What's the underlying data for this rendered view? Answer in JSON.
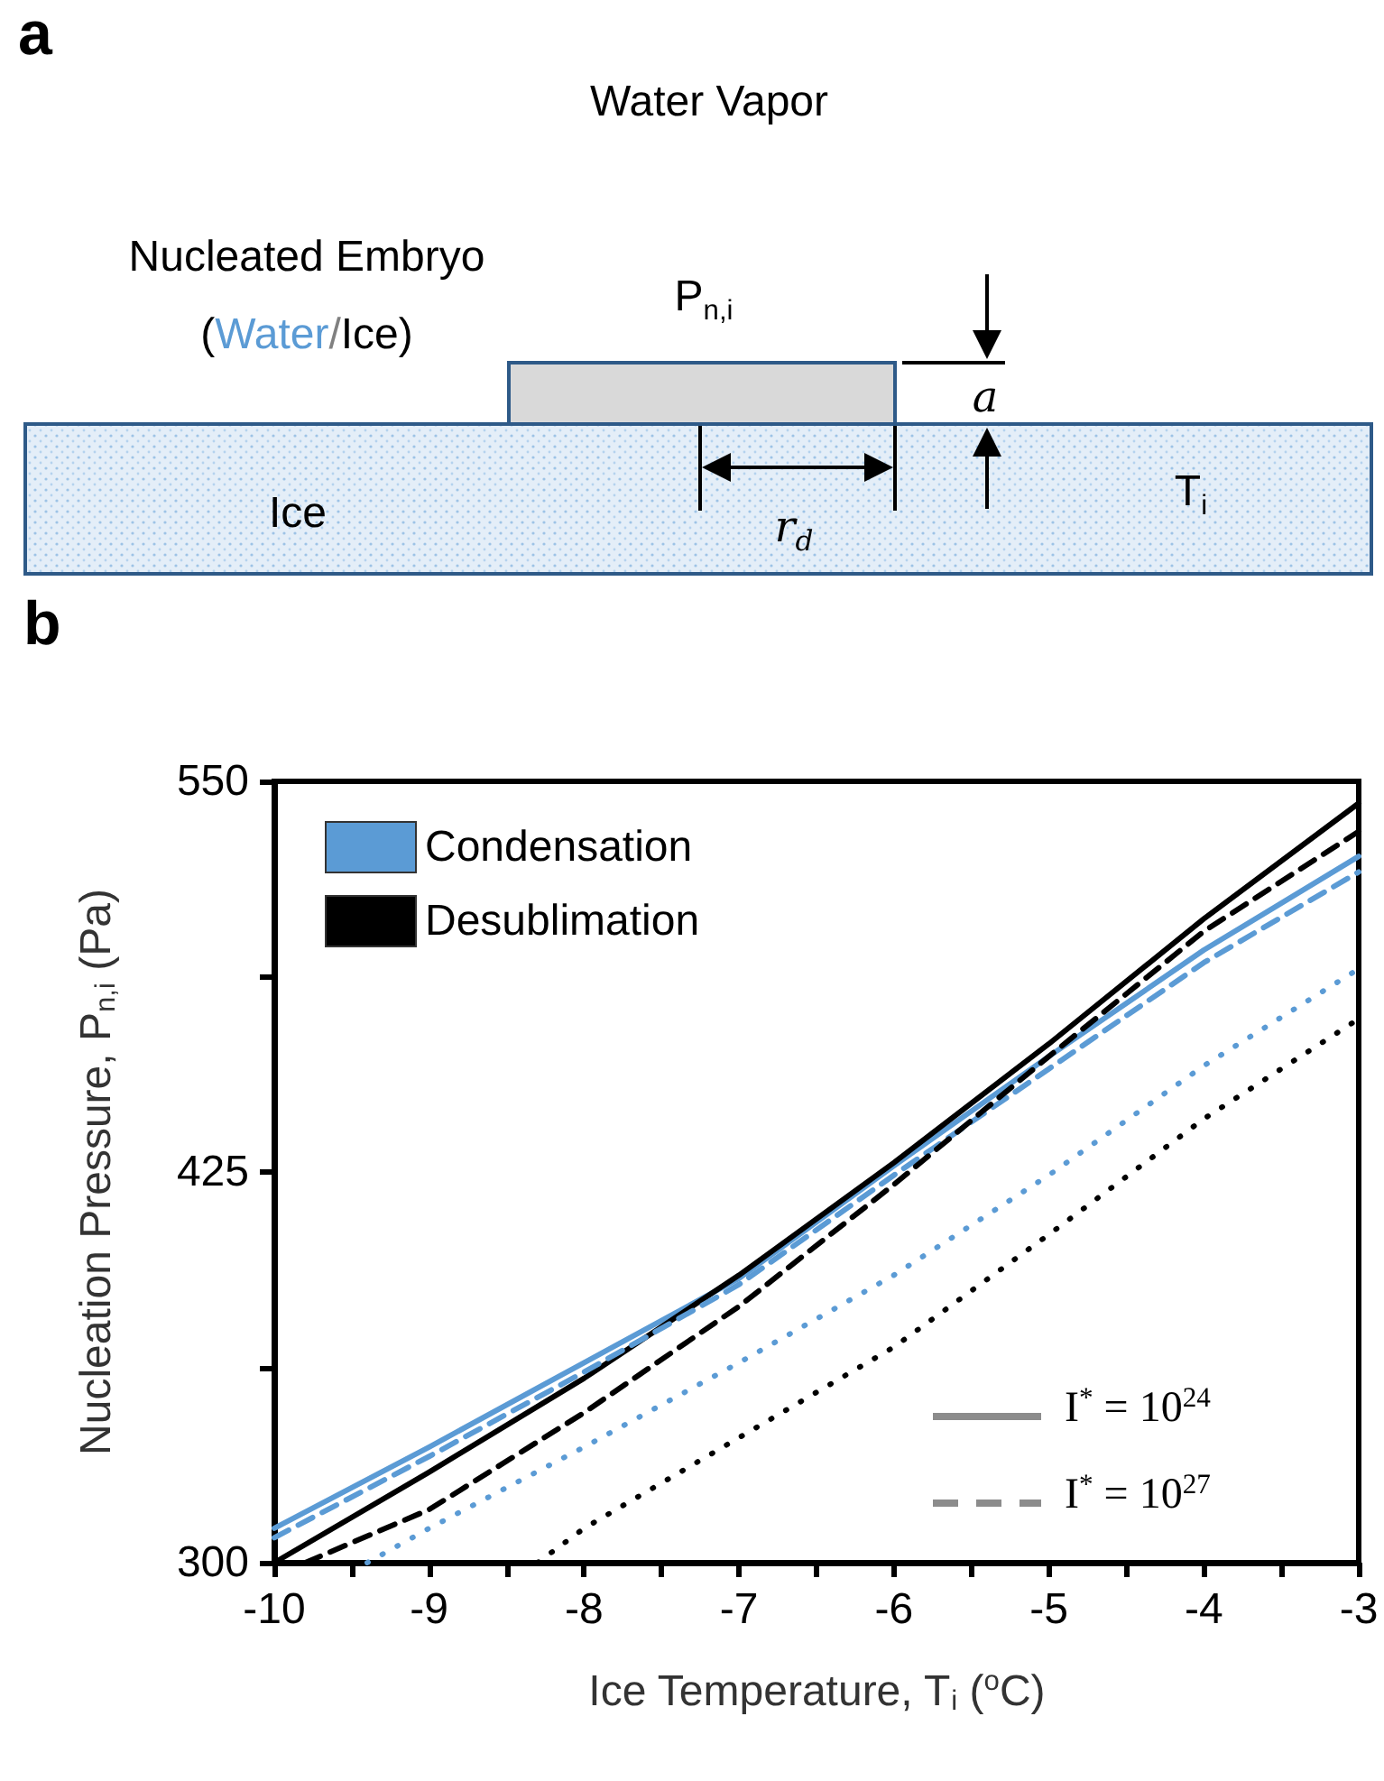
{
  "chart_data": [
    {
      "type": "other",
      "title": "a",
      "annotations": [
        "Water Vapor",
        "Nucleated Embryo",
        "(Water/Ice)",
        "P$_{n,i}$",
        "Ice",
        "r$_{d}$",
        "a",
        "T$_{i}$"
      ]
    },
    {
      "type": "line",
      "title": "b",
      "xlabel": "Ice Temperature, T$_{i}$ ($^{o}$C)",
      "ylabel": "Nucleation Pressure, P$_{n,i}$ (Pa)",
      "xlim": [
        -10,
        -3
      ],
      "xticks": [
        -10,
        {
          "value": -9.5,
          "label": null
        },
        -9,
        {
          "value": -8.5,
          "label": null
        },
        -8,
        {
          "value": -7.5,
          "label": null
        },
        -7,
        {
          "value": -6.5,
          "label": null
        },
        -6,
        {
          "value": -5.5,
          "label": null
        },
        -5,
        {
          "value": -4.5,
          "label": null
        },
        -4,
        {
          "value": -3.5,
          "label": null
        },
        -3
      ],
      "ylim": [
        300,
        550
      ],
      "yticks": [
        300,
        {
          "value": 362.5,
          "label": null
        },
        425,
        {
          "value": 487.5,
          "label": null
        },
        550
      ],
      "grid": false,
      "marker": "none",
      "legend": "top left",
      "annotations": [
        "I$^{*}$ = 10$^{24}$",
        "I$^{*}$ = 10$^{27}$"
      ],
      "series": [
        {
          "name": "Condensation",
          "color": "#5b9bd5",
          "line_style": "solid",
          "x": [
            -10,
            -9,
            -8,
            -7,
            -6,
            -5,
            -4,
            -3
          ],
          "values": [
            311,
            337,
            364,
            391,
            427,
            462,
            496,
            526
          ]
        },
        {
          "name": "Desublimation",
          "color": "#000000",
          "line_style": "solid",
          "x": [
            -10,
            -9,
            -8,
            -7,
            -6,
            -5,
            -4,
            -3
          ],
          "values": [
            300,
            329,
            359,
            392,
            428,
            466,
            506,
            543
          ]
        },
        {
          "color": "#5b9bd5",
          "line_style": "dashed",
          "x": [
            -10,
            -9,
            -8,
            -7,
            -6,
            -5,
            -4,
            -3
          ],
          "values": [
            308,
            334,
            361,
            389,
            424,
            458,
            492,
            521
          ]
        },
        {
          "color": "#000000",
          "line_style": "dashed",
          "x": [
            -9.8,
            -9,
            -8,
            -7,
            -6,
            -5,
            -4,
            -3
          ],
          "values": [
            300,
            317,
            348,
            382,
            421,
            462,
            502,
            534
          ]
        },
        {
          "color": "#5b9bd5",
          "line_style": "dotted",
          "x": [
            -9.4,
            -9,
            -8,
            -7,
            -6,
            -5,
            -4,
            -3
          ],
          "values": [
            300,
            311,
            337,
            364,
            392,
            424,
            459,
            490
          ]
        },
        {
          "color": "#000000",
          "line_style": "dotted",
          "x": [
            -8.3,
            -8,
            -7,
            -6,
            -5,
            -4,
            -3
          ],
          "values": [
            300,
            311,
            340,
            369,
            405,
            442,
            474
          ]
        }
      ]
    }
  ]
}
